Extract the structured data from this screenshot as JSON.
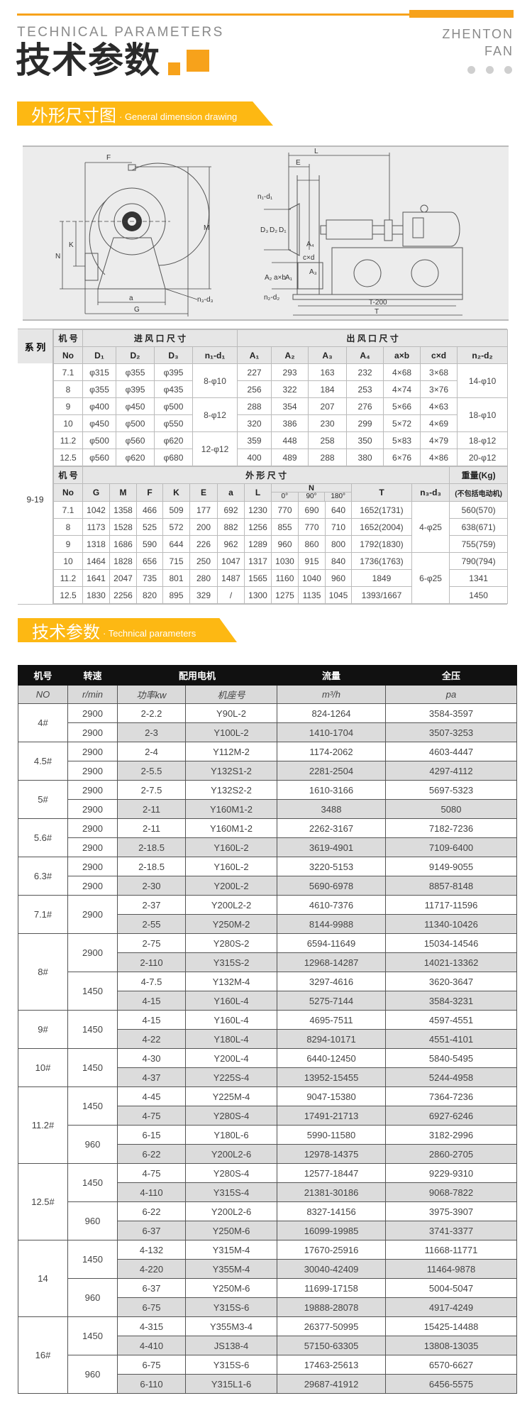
{
  "header": {
    "en_title": "TECHNICAL PARAMETERS",
    "cn_title": "技术参数",
    "brand_line1": "ZHENTON",
    "brand_line2": "FAN",
    "accent_color": "#f7a21b"
  },
  "section1": {
    "cn": "外形尺寸图",
    "en": "· General dimension drawing",
    "color": "#fdb813"
  },
  "drawing": {
    "labels": {
      "F": "F",
      "M": "M",
      "N": "N",
      "K": "K",
      "a": "a",
      "G": "G",
      "n3d3": "n₃-d₃",
      "L": "L",
      "E": "E",
      "n1d1": "n₁-d₁",
      "D3": "D₃",
      "D2": "D₂",
      "D1": "D₁",
      "A4": "A₄",
      "cxd": "c×d",
      "A3": "A₃",
      "A2": "A₂",
      "axb": "a×b",
      "A1": "A₁",
      "n2d2": "n₂-d₂",
      "T200": "T-200",
      "T": "T"
    }
  },
  "dim_table": {
    "series_label": "系 列",
    "series_value": "9-19",
    "inlet": {
      "h_no": "机 号",
      "h_group": "进 风 口 尺 寸",
      "h_outlet": "出 风 口 尺 寸",
      "cols": [
        "No",
        "D₁",
        "D₂",
        "D₃",
        "n₁-d₁",
        "A₁",
        "A₂",
        "A₃",
        "A₄",
        "a×b",
        "c×d",
        "n₂-d₂"
      ],
      "rows": [
        {
          "no": "7.1",
          "d1": "φ315",
          "d2": "φ355",
          "d3": "φ395",
          "a1": "227",
          "a2": "293",
          "a3": "163",
          "a4": "232",
          "axb": "4×68",
          "cxd": "3×68"
        },
        {
          "no": "8",
          "d1": "φ355",
          "d2": "φ395",
          "d3": "φ435",
          "a1": "256",
          "a2": "322",
          "a3": "184",
          "a4": "253",
          "axb": "4×74",
          "cxd": "3×76"
        },
        {
          "no": "9",
          "d1": "φ400",
          "d2": "φ450",
          "d3": "φ500",
          "a1": "288",
          "a2": "354",
          "a3": "207",
          "a4": "276",
          "axb": "5×66",
          "cxd": "4×63"
        },
        {
          "no": "10",
          "d1": "φ450",
          "d2": "φ500",
          "d3": "φ550",
          "a1": "320",
          "a2": "386",
          "a3": "230",
          "a4": "299",
          "axb": "5×72",
          "cxd": "4×69"
        },
        {
          "no": "11.2",
          "d1": "φ500",
          "d2": "φ560",
          "d3": "φ620",
          "a1": "359",
          "a2": "448",
          "a3": "258",
          "a4": "350",
          "axb": "5×83",
          "cxd": "4×79"
        },
        {
          "no": "12.5",
          "d1": "φ560",
          "d2": "φ620",
          "d3": "φ680",
          "a1": "400",
          "a2": "489",
          "a3": "288",
          "a4": "380",
          "axb": "6×76",
          "cxd": "4×86"
        }
      ],
      "n1d1": [
        {
          "value": "8-φ10",
          "span": 2
        },
        {
          "value": "8-φ12",
          "span": 2
        },
        {
          "value": "12-φ12",
          "span": 2
        }
      ],
      "n2d2": [
        {
          "value": "14-φ10",
          "span": 2
        },
        {
          "value": "18-φ10",
          "span": 2
        },
        {
          "value": "18-φ12",
          "span": 1
        },
        {
          "value": "20-φ12",
          "span": 1
        }
      ]
    },
    "outline": {
      "h_no": "机 号",
      "h_group": "外 形 尺 寸",
      "h_weight": "重量(Kg)",
      "h_weight_note": "(不包括电动机)",
      "cols": [
        "No",
        "G",
        "M",
        "F",
        "K",
        "E",
        "a",
        "L"
      ],
      "n_label": "N",
      "n_subs": [
        "0°",
        "90°",
        "180°"
      ],
      "t_label": "T",
      "n3d3_label": "n₃-d₃",
      "rows": [
        {
          "no": "7.1",
          "g": "1042",
          "m": "1358",
          "f": "466",
          "k": "509",
          "e": "177",
          "a": "692",
          "l": "1230",
          "n0": "770",
          "n90": "690",
          "n180": "640",
          "t": "1652(1731)",
          "w": "560(570)"
        },
        {
          "no": "8",
          "g": "1173",
          "m": "1528",
          "f": "525",
          "k": "572",
          "e": "200",
          "a": "882",
          "l": "1256",
          "n0": "855",
          "n90": "770",
          "n180": "710",
          "t": "1652(2004)",
          "w": "638(671)"
        },
        {
          "no": "9",
          "g": "1318",
          "m": "1686",
          "f": "590",
          "k": "644",
          "e": "226",
          "a": "962",
          "l": "1289",
          "n0": "960",
          "n90": "860",
          "n180": "800",
          "t": "1792(1830)",
          "w": "755(759)"
        },
        {
          "no": "10",
          "g": "1464",
          "m": "1828",
          "f": "656",
          "k": "715",
          "e": "250",
          "a": "1047",
          "l": "1317",
          "n0": "1030",
          "n90": "915",
          "n180": "840",
          "t": "1736(1763)",
          "w": "790(794)"
        },
        {
          "no": "11.2",
          "g": "1641",
          "m": "2047",
          "f": "735",
          "k": "801",
          "e": "280",
          "a": "1487",
          "l": "1565",
          "n0": "1160",
          "n90": "1040",
          "n180": "960",
          "t": "1849",
          "w": "1341"
        },
        {
          "no": "12.5",
          "g": "1830",
          "m": "2256",
          "f": "820",
          "k": "895",
          "e": "329",
          "a": "/",
          "l": "1300",
          "n0": "1275",
          "n90": "1135",
          "n180": "1045",
          "t": "1393/1667",
          "w": "1450"
        }
      ],
      "n3d3": [
        {
          "value": "4-φ25",
          "span": 3
        },
        {
          "value": "6-φ25",
          "span": 3
        }
      ]
    }
  },
  "section2": {
    "cn": "技术参数",
    "en": "· Technical parameters",
    "color": "#fdb813"
  },
  "perf_table": {
    "headers": [
      "机号",
      "转速",
      "配用电机",
      "流量",
      "全压"
    ],
    "subheaders": [
      "NO",
      "r/min",
      "功率kw",
      "机座号",
      "m³/h",
      "pa"
    ],
    "groups": [
      {
        "no": "4#",
        "speeds": [
          {
            "rpm": "2900",
            "rows": [
              [
                "2-2.2",
                "Y90L-2",
                "824-1264",
                "3584-3597"
              ]
            ]
          },
          {
            "rpm": "2900",
            "rows": [
              [
                "2-3",
                "Y100L-2",
                "1410-1704",
                "3507-3253"
              ]
            ]
          }
        ]
      },
      {
        "no": "4.5#",
        "speeds": [
          {
            "rpm": "2900",
            "rows": [
              [
                "2-4",
                "Y112M-2",
                "1174-2062",
                "4603-4447"
              ]
            ]
          },
          {
            "rpm": "2900",
            "rows": [
              [
                "2-5.5",
                "Y132S1-2",
                "2281-2504",
                "4297-4112"
              ]
            ]
          }
        ]
      },
      {
        "no": "5#",
        "speeds": [
          {
            "rpm": "2900",
            "rows": [
              [
                "2-7.5",
                "Y132S2-2",
                "1610-3166",
                "5697-5323"
              ]
            ]
          },
          {
            "rpm": "2900",
            "rows": [
              [
                "2-11",
                "Y160M1-2",
                "3488",
                "5080"
              ]
            ]
          }
        ]
      },
      {
        "no": "5.6#",
        "speeds": [
          {
            "rpm": "2900",
            "rows": [
              [
                "2-11",
                "Y160M1-2",
                "2262-3167",
                "7182-7236"
              ]
            ]
          },
          {
            "rpm": "2900",
            "rows": [
              [
                "2-18.5",
                "Y160L-2",
                "3619-4901",
                "7109-6400"
              ]
            ]
          }
        ]
      },
      {
        "no": "6.3#",
        "speeds": [
          {
            "rpm": "2900",
            "rows": [
              [
                "2-18.5",
                "Y160L-2",
                "3220-5153",
                "9149-9055"
              ]
            ]
          },
          {
            "rpm": "2900",
            "rows": [
              [
                "2-30",
                "Y200L-2",
                "5690-6978",
                "8857-8148"
              ]
            ]
          }
        ]
      },
      {
        "no": "7.1#",
        "speeds": [
          {
            "rpm": "2900",
            "rows": [
              [
                "2-37",
                "Y200L2-2",
                "4610-7376",
                "11717-11596"
              ],
              [
                "2-55",
                "Y250M-2",
                "8144-9988",
                "11340-10426"
              ]
            ]
          }
        ]
      },
      {
        "no": "8#",
        "speeds": [
          {
            "rpm": "2900",
            "rows": [
              [
                "2-75",
                "Y280S-2",
                "6594-11649",
                "15034-14546"
              ],
              [
                "2-110",
                "Y315S-2",
                "12968-14287",
                "14021-13362"
              ]
            ]
          },
          {
            "rpm": "1450",
            "rows": [
              [
                "4-7.5",
                "Y132M-4",
                "3297-4616",
                "3620-3647"
              ],
              [
                "4-15",
                "Y160L-4",
                "5275-7144",
                "3584-3231"
              ]
            ]
          }
        ]
      },
      {
        "no": "9#",
        "speeds": [
          {
            "rpm": "1450",
            "rows": [
              [
                "4-15",
                "Y160L-4",
                "4695-7511",
                "4597-4551"
              ],
              [
                "4-22",
                "Y180L-4",
                "8294-10171",
                "4551-4101"
              ]
            ]
          }
        ]
      },
      {
        "no": "10#",
        "speeds": [
          {
            "rpm": "1450",
            "rows": [
              [
                "4-30",
                "Y200L-4",
                "6440-12450",
                "5840-5495"
              ],
              [
                "4-37",
                "Y225S-4",
                "13952-15455",
                "5244-4958"
              ]
            ]
          }
        ]
      },
      {
        "no": "11.2#",
        "speeds": [
          {
            "rpm": "1450",
            "rows": [
              [
                "4-45",
                "Y225M-4",
                "9047-15380",
                "7364-7236"
              ],
              [
                "4-75",
                "Y280S-4",
                "17491-21713",
                "6927-6246"
              ]
            ]
          },
          {
            "rpm": "960",
            "rows": [
              [
                "6-15",
                "Y180L-6",
                "5990-11580",
                "3182-2996"
              ],
              [
                "6-22",
                "Y200L2-6",
                "12978-14375",
                "2860-2705"
              ]
            ]
          }
        ]
      },
      {
        "no": "12.5#",
        "speeds": [
          {
            "rpm": "1450",
            "rows": [
              [
                "4-75",
                "Y280S-4",
                "12577-18447",
                "9229-9310"
              ],
              [
                "4-110",
                "Y315S-4",
                "21381-30186",
                "9068-7822"
              ]
            ]
          },
          {
            "rpm": "960",
            "rows": [
              [
                "6-22",
                "Y200L2-6",
                "8327-14156",
                "3975-3907"
              ],
              [
                "6-37",
                "Y250M-6",
                "16099-19985",
                "3741-3377"
              ]
            ]
          }
        ]
      },
      {
        "no": "14",
        "speeds": [
          {
            "rpm": "1450",
            "rows": [
              [
                "4-132",
                "Y315M-4",
                "17670-25916",
                "11668-11771"
              ],
              [
                "4-220",
                "Y355M-4",
                "30040-42409",
                "11464-9878"
              ]
            ]
          },
          {
            "rpm": "960",
            "rows": [
              [
                "6-37",
                "Y250M-6",
                "11699-17158",
                "5004-5047"
              ],
              [
                "6-75",
                "Y315S-6",
                "19888-28078",
                "4917-4249"
              ]
            ]
          }
        ]
      },
      {
        "no": "16#",
        "speeds": [
          {
            "rpm": "1450",
            "rows": [
              [
                "4-315",
                "Y355M3-4",
                "26377-50995",
                "15425-14488"
              ],
              [
                "4-410",
                "JS138-4",
                "57150-63305",
                "13808-13035"
              ]
            ]
          },
          {
            "rpm": "960",
            "rows": [
              [
                "6-75",
                "Y315S-6",
                "17463-25613",
                "6570-6627"
              ],
              [
                "6-110",
                "Y315L1-6",
                "29687-41912",
                "6456-5575"
              ]
            ]
          }
        ]
      }
    ]
  }
}
